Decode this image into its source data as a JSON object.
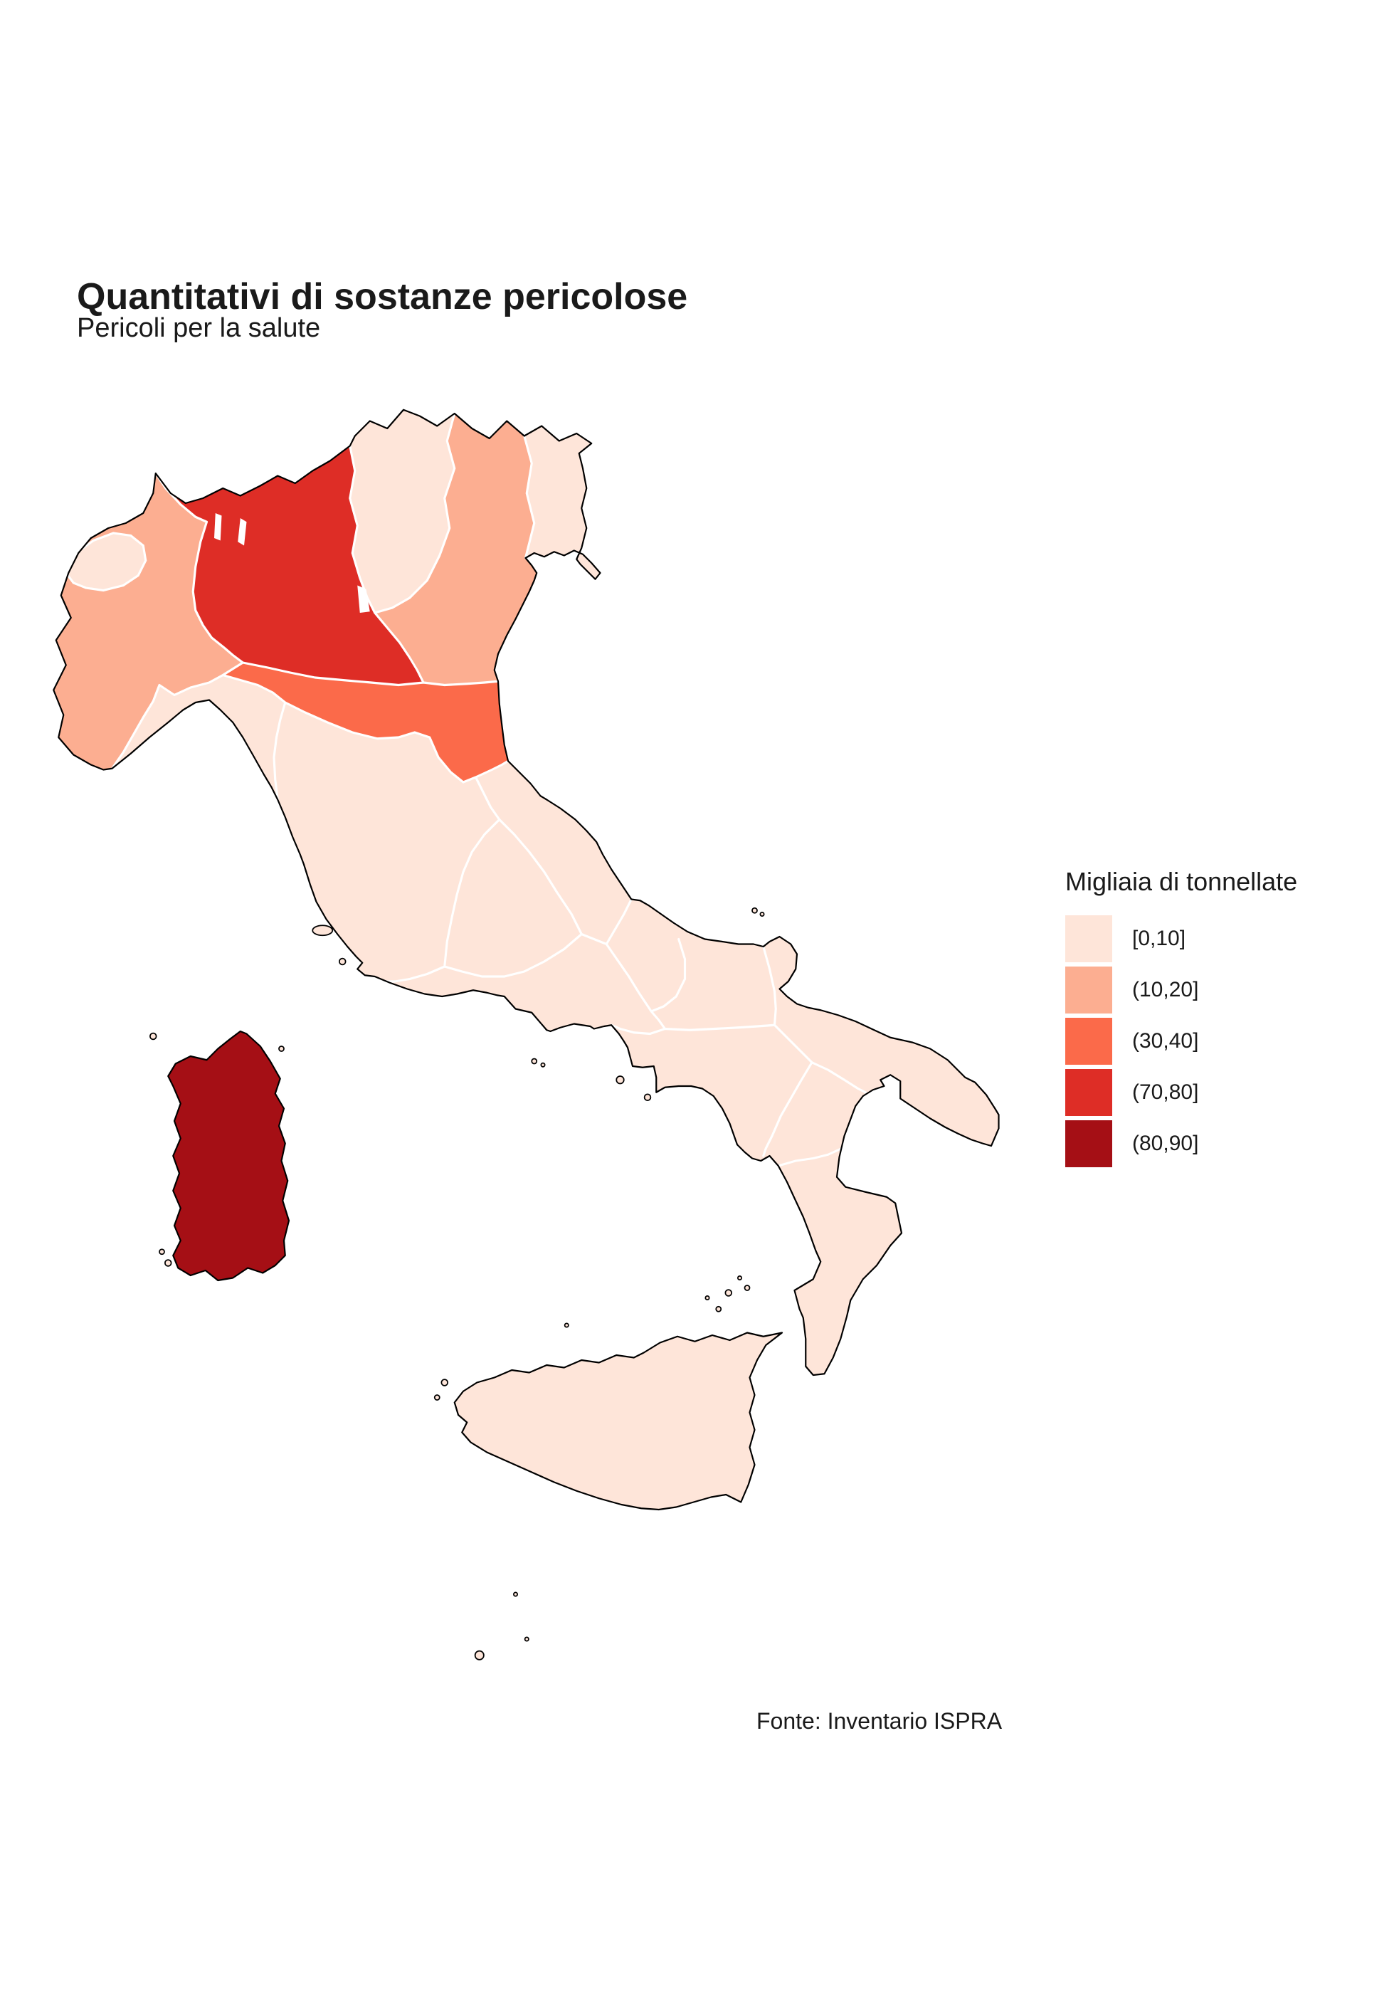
{
  "title": "Quantitativi di sostanze pericolose",
  "subtitle": "Pericoli per la salute",
  "source": "Fonte: Inventario ISPRA",
  "palette": {
    "bin1": "#fee5d9",
    "bin2": "#fcae91",
    "bin3": "#fb6a4a",
    "bin4": "#de2d26",
    "bin5": "#a50f15",
    "sea": "#ffffff",
    "coastline": "#000000",
    "region_border": "#ffffff"
  },
  "legend": {
    "title": "Migliaia di tonnellate",
    "entries": [
      {
        "label": "[0,10]",
        "color": "#fee5d9"
      },
      {
        "label": "(10,20]",
        "color": "#fcae91"
      },
      {
        "label": "(30,40]",
        "color": "#fb6a4a"
      },
      {
        "label": "(70,80]",
        "color": "#de2d26"
      },
      {
        "label": "(80,90]",
        "color": "#a50f15"
      }
    ]
  },
  "chart_data": {
    "type": "choropleth_map",
    "area": "Italy, regions",
    "title": "Quantitativi di sostanze pericolose",
    "subtitle": "Pericoli per la salute",
    "unit": "Migliaia di tonnellate",
    "legend_position": "right",
    "regions": [
      {
        "name": "Valle d'Aosta",
        "bin": "[0,10]",
        "color": "#fee5d9"
      },
      {
        "name": "Piemonte",
        "bin": "(10,20]",
        "color": "#fcae91"
      },
      {
        "name": "Liguria",
        "bin": "[0,10]",
        "color": "#fee5d9"
      },
      {
        "name": "Lombardia",
        "bin": "(70,80]",
        "color": "#de2d26"
      },
      {
        "name": "Trentino-Alto Adige",
        "bin": "[0,10]",
        "color": "#fee5d9"
      },
      {
        "name": "Veneto",
        "bin": "(10,20]",
        "color": "#fcae91"
      },
      {
        "name": "Friuli-Venezia Giulia",
        "bin": "[0,10]",
        "color": "#fee5d9"
      },
      {
        "name": "Emilia-Romagna",
        "bin": "(30,40]",
        "color": "#fb6a4a"
      },
      {
        "name": "Toscana",
        "bin": "[0,10]",
        "color": "#fee5d9"
      },
      {
        "name": "Umbria",
        "bin": "[0,10]",
        "color": "#fee5d9"
      },
      {
        "name": "Marche",
        "bin": "[0,10]",
        "color": "#fee5d9"
      },
      {
        "name": "Lazio",
        "bin": "[0,10]",
        "color": "#fee5d9"
      },
      {
        "name": "Abruzzo",
        "bin": "[0,10]",
        "color": "#fee5d9"
      },
      {
        "name": "Molise",
        "bin": "[0,10]",
        "color": "#fee5d9"
      },
      {
        "name": "Campania",
        "bin": "[0,10]",
        "color": "#fee5d9"
      },
      {
        "name": "Puglia",
        "bin": "[0,10]",
        "color": "#fee5d9"
      },
      {
        "name": "Basilicata",
        "bin": "[0,10]",
        "color": "#fee5d9"
      },
      {
        "name": "Calabria",
        "bin": "[0,10]",
        "color": "#fee5d9"
      },
      {
        "name": "Sicilia",
        "bin": "[0,10]",
        "color": "#fee5d9"
      },
      {
        "name": "Sardegna",
        "bin": "(80,90]",
        "color": "#a50f15"
      }
    ]
  }
}
